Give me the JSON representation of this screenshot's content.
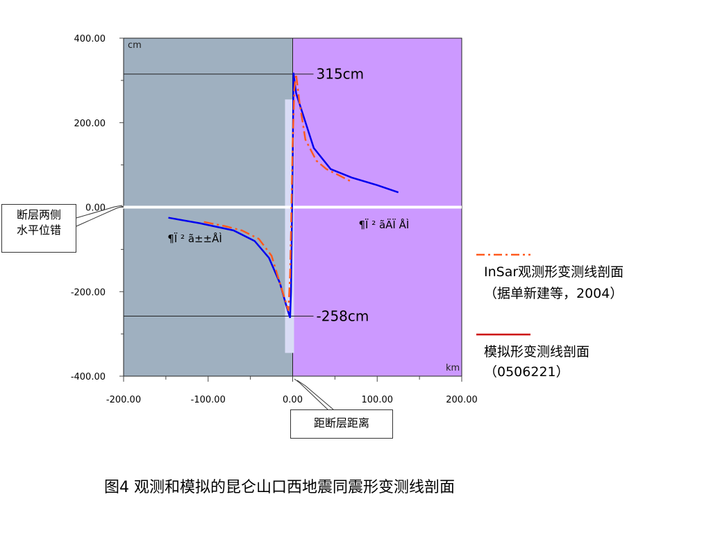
{
  "chart_data": {
    "type": "line",
    "xlim": [
      -200,
      200
    ],
    "ylim": [
      -400,
      400
    ],
    "x_ticks": [
      "-200.00",
      "-100.00",
      "0.00",
      "100.00",
      "200.00"
    ],
    "y_ticks": [
      "400.00",
      "200.00",
      "0.00",
      "-200.00",
      "-400.00"
    ],
    "y_unit": "cm",
    "x_unit": "km",
    "left_region_label": "¶Ï ² ã±±ÅÌ",
    "right_region_label": "¶Ï ² ãÄÏ ÅÌ",
    "ref_lines": [
      {
        "y": 315,
        "label": "315cm"
      },
      {
        "y": -258,
        "label": "-258cm"
      }
    ],
    "colors": {
      "left_bg": "#9fb0c0",
      "right_bg": "#cc99ff",
      "model_line": "#0000ee",
      "insar_line": "#ff5a1e",
      "fault_band": "#d9dcf5",
      "zero_line": "#ffffff"
    },
    "series": [
      {
        "name": "模拟形变测线剖面",
        "style": "solid",
        "x": [
          -147,
          -110,
          -70,
          -45,
          -28,
          -15,
          -8,
          -3,
          -2,
          -1,
          0,
          1,
          4,
          25,
          45,
          70,
          100,
          125
        ],
        "y": [
          -25,
          -38,
          -55,
          -80,
          -120,
          -180,
          -230,
          -262,
          -200,
          -50,
          100,
          318,
          270,
          140,
          90,
          70,
          52,
          35
        ]
      },
      {
        "name": "InSar观测形变测线剖面（据单新建等，2004）",
        "style": "dashdot",
        "x": [
          -105,
          -80,
          -60,
          -40,
          -25,
          -15,
          -5,
          -3,
          -2,
          0,
          2,
          4,
          8,
          15,
          28,
          40,
          55,
          70
        ],
        "y": [
          -35,
          -45,
          -55,
          -75,
          -115,
          -180,
          -245,
          -160,
          -60,
          150,
          280,
          315,
          250,
          160,
          110,
          90,
          75,
          60
        ]
      }
    ]
  },
  "annotations": {
    "fault_offset": "断层两侧\n水平位错",
    "fault_distance": "距断层距离"
  },
  "legend": {
    "insar_line1": "InSar观测形变测线剖面",
    "insar_line2": "（据单新建等，2004）",
    "model_line1": "模拟形变测线剖面",
    "model_line2": "（0506221）"
  },
  "caption": "图4  观测和模拟的昆仑山口西地震同震形变测线剖面"
}
